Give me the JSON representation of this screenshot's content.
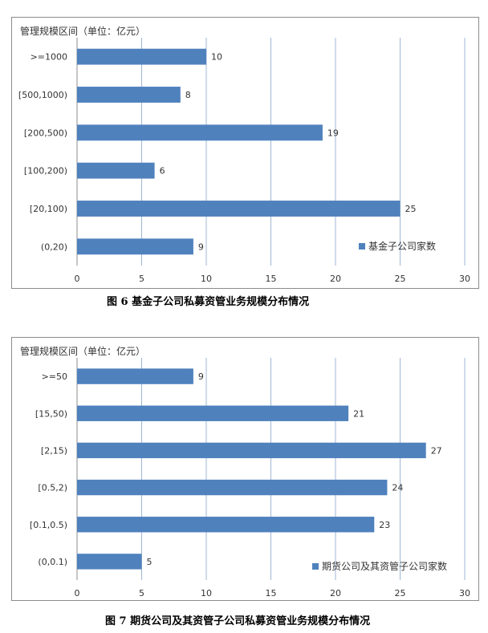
{
  "chart_data": [
    {
      "type": "bar",
      "orientation": "horizontal",
      "title": "",
      "ylabel": "管理规模区间（单位：亿元）",
      "xlabel": "",
      "categories": [
        ">=1000",
        "[500,1000)",
        "[200,500)",
        "[100,200)",
        "[20,100)",
        "(0,20)"
      ],
      "series": [
        {
          "name": "基金子公司家数",
          "values": [
            10,
            8,
            19,
            6,
            25,
            9
          ]
        }
      ],
      "xlim": [
        0,
        30
      ],
      "xticks": [
        "0",
        "5",
        "10",
        "15",
        "20",
        "25",
        "30"
      ],
      "grid": "vertical",
      "legend_position": "bottom-right",
      "bar_color": "#4f81bd",
      "data_labels": true
    },
    {
      "type": "bar",
      "orientation": "horizontal",
      "title": "",
      "ylabel": "管理规模区间（单位：亿元）",
      "xlabel": "",
      "categories": [
        ">=50",
        "[15,50)",
        "[2,15)",
        "[0.5,2)",
        "[0.1,0.5)",
        "(0,0.1)"
      ],
      "series": [
        {
          "name": "期货公司及其资管子公司家数",
          "values": [
            9,
            21,
            27,
            24,
            23,
            5
          ]
        }
      ],
      "xlim": [
        0,
        30
      ],
      "xticks": [
        "0",
        "5",
        "10",
        "15",
        "20",
        "25",
        "30"
      ],
      "grid": "vertical",
      "legend_position": "bottom-right",
      "bar_color": "#4f81bd",
      "data_labels": true
    }
  ],
  "captions": {
    "fig6": "图 6   基金子公司私募资管业务规模分布情况",
    "fig7": "图 7   期货公司及其资管子公司私募资管业务规模分布情况"
  }
}
